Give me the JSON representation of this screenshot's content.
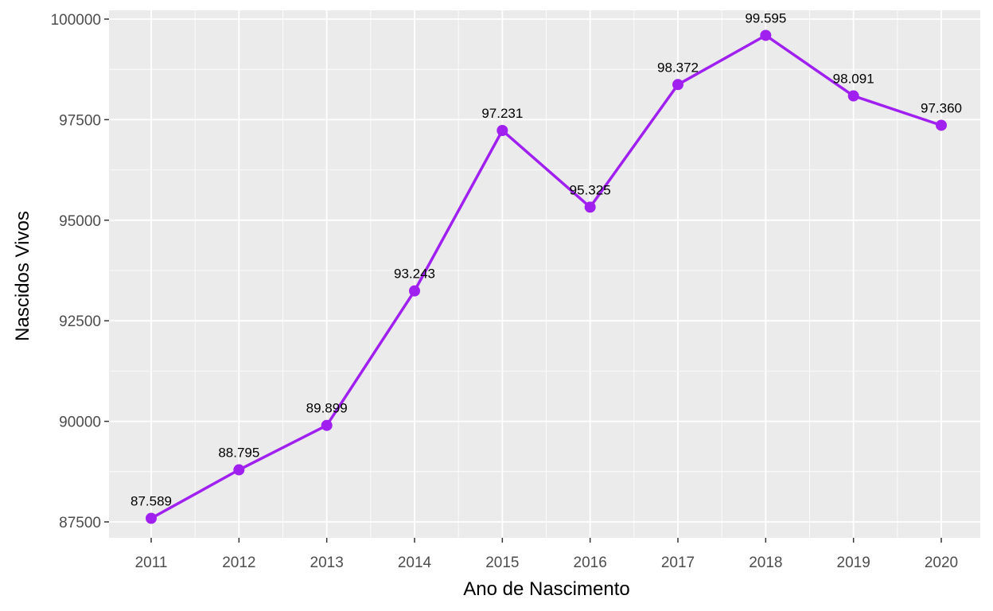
{
  "chart_data": {
    "type": "line",
    "title": "",
    "xlabel": "Ano de Nascimento",
    "ylabel": "Nascidos Vivos",
    "x": [
      "2011",
      "2012",
      "2013",
      "2014",
      "2015",
      "2016",
      "2017",
      "2018",
      "2019",
      "2020"
    ],
    "y": [
      87589,
      88795,
      89899,
      93243,
      97231,
      95325,
      98372,
      99595,
      98091,
      97360
    ],
    "data_labels": [
      "87.589",
      "88.795",
      "89.899",
      "93.243",
      "97.231",
      "95.325",
      "98.372",
      "99.595",
      "98.091",
      "97.360"
    ],
    "y_ticks": [
      87500,
      90000,
      92500,
      95000,
      97500,
      100000
    ],
    "y_tick_labels": [
      "87500",
      "90000",
      "92500",
      "95000",
      "97500",
      "100000"
    ],
    "ylim": [
      87100,
      100200
    ],
    "grid": true,
    "legend": "none",
    "colors": {
      "panel": "#ebebeb",
      "grid": "#ffffff",
      "line": "#a020f0",
      "tick_text": "#4d4d4d",
      "tick_mark": "#333333",
      "label_text": "#000000"
    }
  }
}
